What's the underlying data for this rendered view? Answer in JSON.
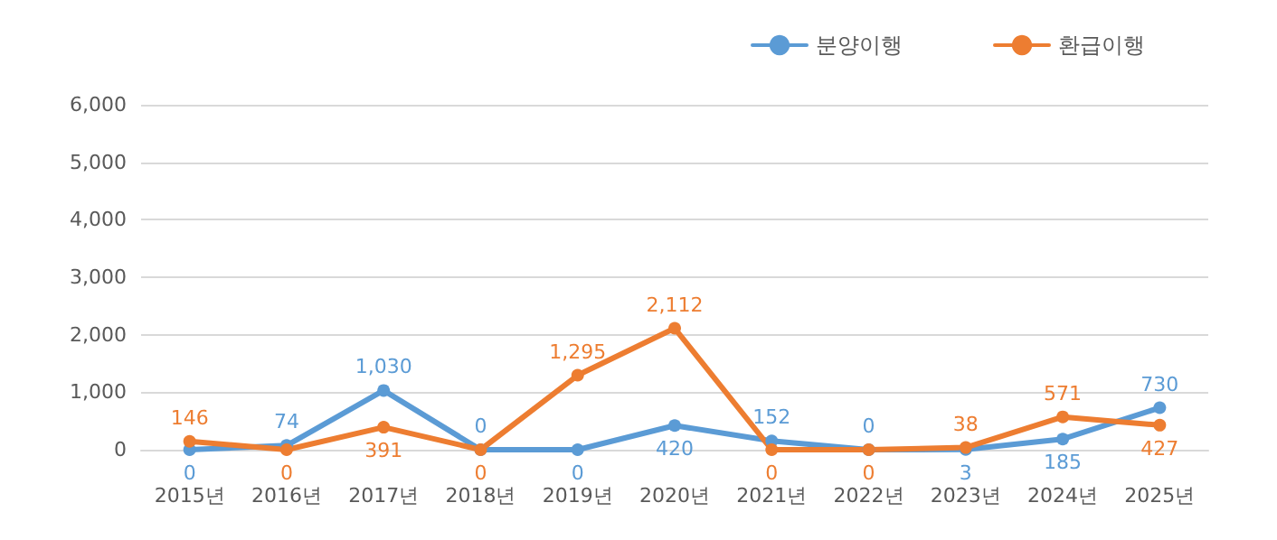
{
  "chart_data": {
    "type": "line",
    "categories": [
      "2015년",
      "2016년",
      "2017년",
      "2018년",
      "2019년",
      "2020년",
      "2021년",
      "2022년",
      "2023년",
      "2024년",
      "2025년"
    ],
    "series": [
      {
        "name": "분양이행",
        "color": "#5b9bd5",
        "values": [
          0,
          74,
          1030,
          0,
          0,
          420,
          152,
          0,
          3,
          185,
          730
        ],
        "value_labels": [
          "0",
          "74",
          "1,030",
          "0",
          "0",
          "420",
          "152",
          "0",
          "3",
          "185",
          "730"
        ]
      },
      {
        "name": "환급이행",
        "color": "#ed7d31",
        "values": [
          146,
          0,
          391,
          0,
          1295,
          2112,
          0,
          0,
          38,
          571,
          427
        ],
        "value_labels": [
          "146",
          "0",
          "391",
          "0",
          "1,295",
          "2,112",
          "0",
          "0",
          "38",
          "571",
          "427"
        ]
      }
    ],
    "ylim": [
      0,
      6000
    ],
    "yticks": [
      0,
      {
        "value": 1000,
        "label": "1,000"
      },
      {
        "value": 2000,
        "label": "2,000"
      },
      {
        "value": 3000,
        "label": "3,000"
      },
      {
        "value": 4000,
        "label": "4,000"
      },
      {
        "value": 5000,
        "label": "5,000"
      },
      {
        "value": 6000,
        "label": "6,000"
      }
    ],
    "grid": "y",
    "legend": "top right",
    "marker": "circle",
    "line_style": "solid"
  }
}
